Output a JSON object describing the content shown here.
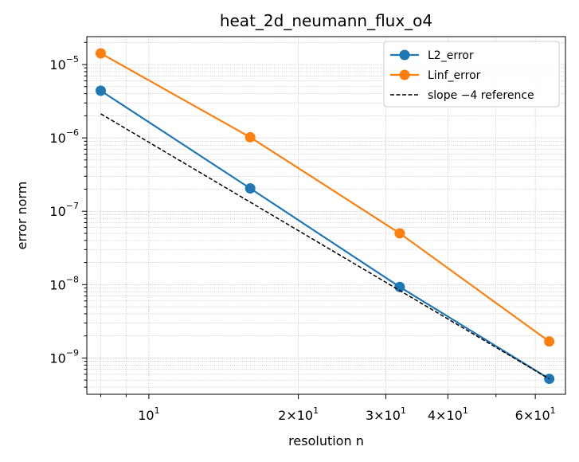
{
  "chart_data": {
    "type": "line",
    "title": "heat_2d_neumann_flux_o4",
    "xlabel": "resolution n",
    "ylabel": "error norm",
    "xscale": "log",
    "yscale": "log",
    "xlim": [
      7.5,
      69
    ],
    "ylim": [
      3.2e-10,
      2.4e-05
    ],
    "grid": true,
    "legend_position": "top-right",
    "x_major_ticks": [
      {
        "value": 10,
        "mant": "",
        "exp": "1"
      },
      {
        "value": 20,
        "mant": "2",
        "exp": "1"
      },
      {
        "value": 30,
        "mant": "3",
        "exp": "1"
      },
      {
        "value": 40,
        "mant": "4",
        "exp": "1"
      },
      {
        "value": 60,
        "mant": "6",
        "exp": "1"
      }
    ],
    "y_major_ticks": [
      {
        "value": 1e-05,
        "exp": "−5"
      },
      {
        "value": 1e-06,
        "exp": "−6"
      },
      {
        "value": 1e-07,
        "exp": "−7"
      },
      {
        "value": 1e-08,
        "exp": "−8"
      },
      {
        "value": 1e-09,
        "exp": "−9"
      }
    ],
    "series": [
      {
        "name": "L2_error",
        "color": "#1f77b4",
        "style": "solid-marker",
        "x": [
          8,
          16,
          32,
          64
        ],
        "y": [
          4.4e-06,
          2.05e-07,
          9.3e-09,
          5.2e-10
        ]
      },
      {
        "name": "Linf_error",
        "color": "#ff7f0e",
        "style": "solid-marker",
        "x": [
          8,
          16,
          32,
          64
        ],
        "y": [
          1.42e-05,
          1.02e-06,
          5e-08,
          1.68e-09
        ]
      },
      {
        "name": "slope −4 reference",
        "color": "#000000",
        "style": "dashed",
        "x": [
          8,
          64
        ],
        "y": [
          2.13e-06,
          5.2e-10
        ]
      }
    ]
  }
}
